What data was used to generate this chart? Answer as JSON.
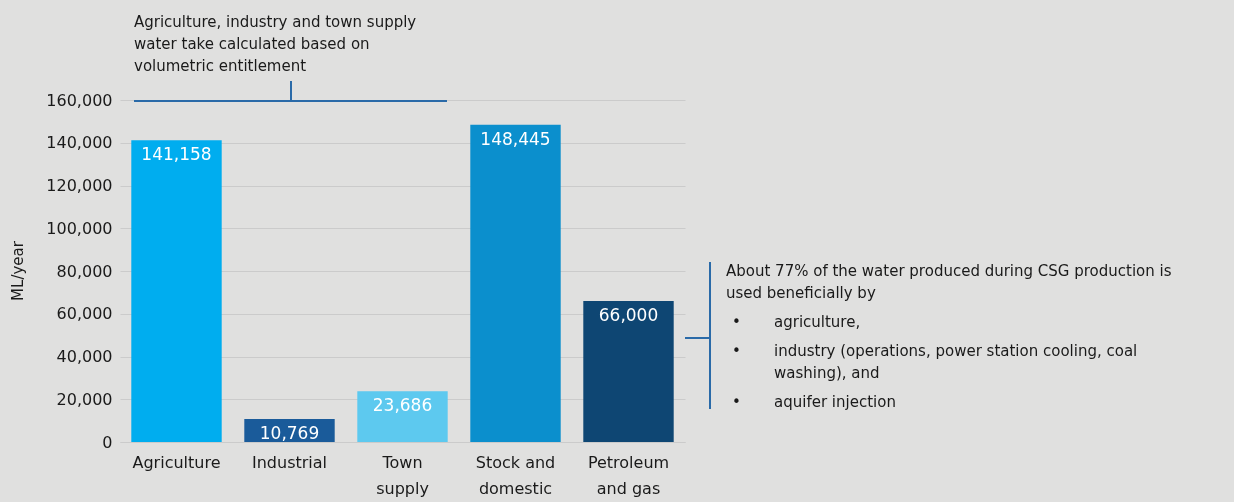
{
  "chart_data": {
    "type": "bar",
    "ylabel": "ML/year",
    "categories": [
      "Agriculture",
      "Industrial",
      "Town supply",
      "Stock and domestic",
      "Petroleum and gas"
    ],
    "values": [
      141158,
      10769,
      23686,
      148445,
      66000
    ],
    "value_labels": [
      "141,158",
      "10,769",
      "23,686",
      "148,445",
      "66,000"
    ],
    "colors": [
      "#00adef",
      "#1a5b9a",
      "#5dc9ef",
      "#0b8fcd",
      "#0e4673"
    ],
    "ylim": [
      0,
      160000
    ],
    "yticks": [
      0,
      {
        "value": 20000,
        "label": "20,000"
      },
      {
        "value": 40000,
        "label": "40,000"
      },
      {
        "value": 60000,
        "label": "60,000"
      },
      {
        "value": 80000,
        "label": "80,000"
      },
      {
        "value": 100000,
        "label": "100,000"
      },
      {
        "value": 120000,
        "label": "120,000"
      },
      {
        "value": 140000,
        "label": "140,000"
      },
      {
        "value": 160000,
        "label": "160,000"
      }
    ],
    "grid": "y",
    "annotations": [
      "Agriculture, industry and town supply water take calculated based on volumetric entitlement",
      "About 77% of the water produced during CSG production is used beneficially by\n• agriculture,\n• industry (operations, power station cooling, coal washing), and\n• aquifer injection"
    ]
  }
}
